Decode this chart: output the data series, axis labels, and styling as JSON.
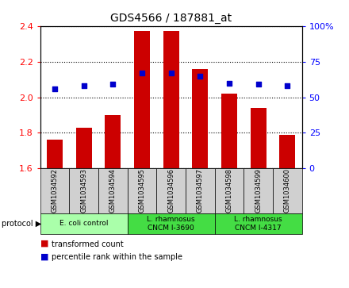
{
  "title": "GDS4566 / 187881_at",
  "samples": [
    "GSM1034592",
    "GSM1034593",
    "GSM1034594",
    "GSM1034595",
    "GSM1034596",
    "GSM1034597",
    "GSM1034598",
    "GSM1034599",
    "GSM1034600"
  ],
  "transformed_count": [
    1.76,
    1.83,
    1.9,
    2.37,
    2.37,
    2.16,
    2.02,
    1.94,
    1.79
  ],
  "percentile_rank": [
    56,
    58,
    59,
    67,
    67,
    65,
    60,
    59,
    58
  ],
  "ylim_left": [
    1.6,
    2.4
  ],
  "yticks_left": [
    1.6,
    1.8,
    2.0,
    2.2,
    2.4
  ],
  "ylim_right": [
    0,
    100
  ],
  "yticks_right": [
    0,
    25,
    50,
    75,
    100
  ],
  "yticklabels_right": [
    "0",
    "25",
    "50",
    "75",
    "100%"
  ],
  "bar_color": "#cc0000",
  "dot_color": "#0000cc",
  "bar_bottom": 1.6,
  "protocols": [
    {
      "label": "E. coli control",
      "indices": [
        0,
        2
      ],
      "color": "#aaffaa"
    },
    {
      "label": "L. rhamnosus\nCNCM I-3690",
      "indices": [
        3,
        5
      ],
      "color": "#44dd44"
    },
    {
      "label": "L. rhamnosus\nCNCM I-4317",
      "indices": [
        6,
        8
      ],
      "color": "#44dd44"
    }
  ],
  "sample_box_color": "#d0d0d0",
  "grid_style": "dotted"
}
